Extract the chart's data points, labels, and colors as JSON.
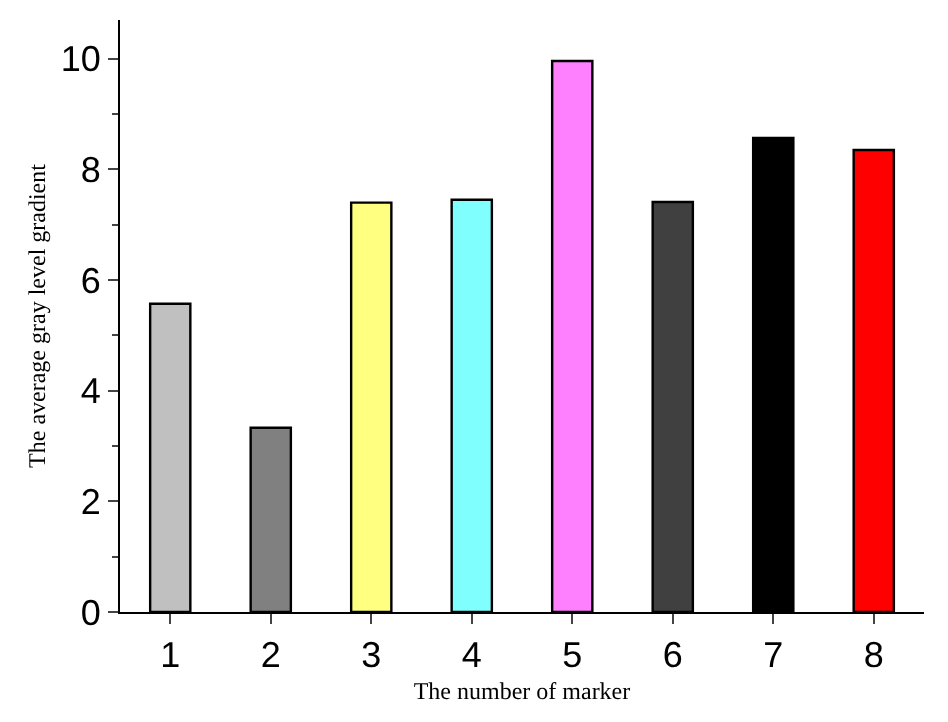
{
  "chart_data": {
    "type": "bar",
    "xlabel": "The number of marker",
    "ylabel": "The average gray level gradient",
    "categories": [
      "1",
      "2",
      "3",
      "4",
      "5",
      "6",
      "7",
      "8"
    ],
    "values": [
      5.57,
      3.33,
      7.4,
      7.45,
      9.96,
      7.41,
      8.57,
      8.35
    ],
    "colors": [
      "#c0c0c0",
      "#808080",
      "#ffff80",
      "#80ffff",
      "#ff80ff",
      "#404040",
      "#000000",
      "#ff0000"
    ],
    "ylim": [
      0,
      10.7
    ],
    "yticks": [
      0,
      2,
      4,
      6,
      8,
      10
    ]
  }
}
